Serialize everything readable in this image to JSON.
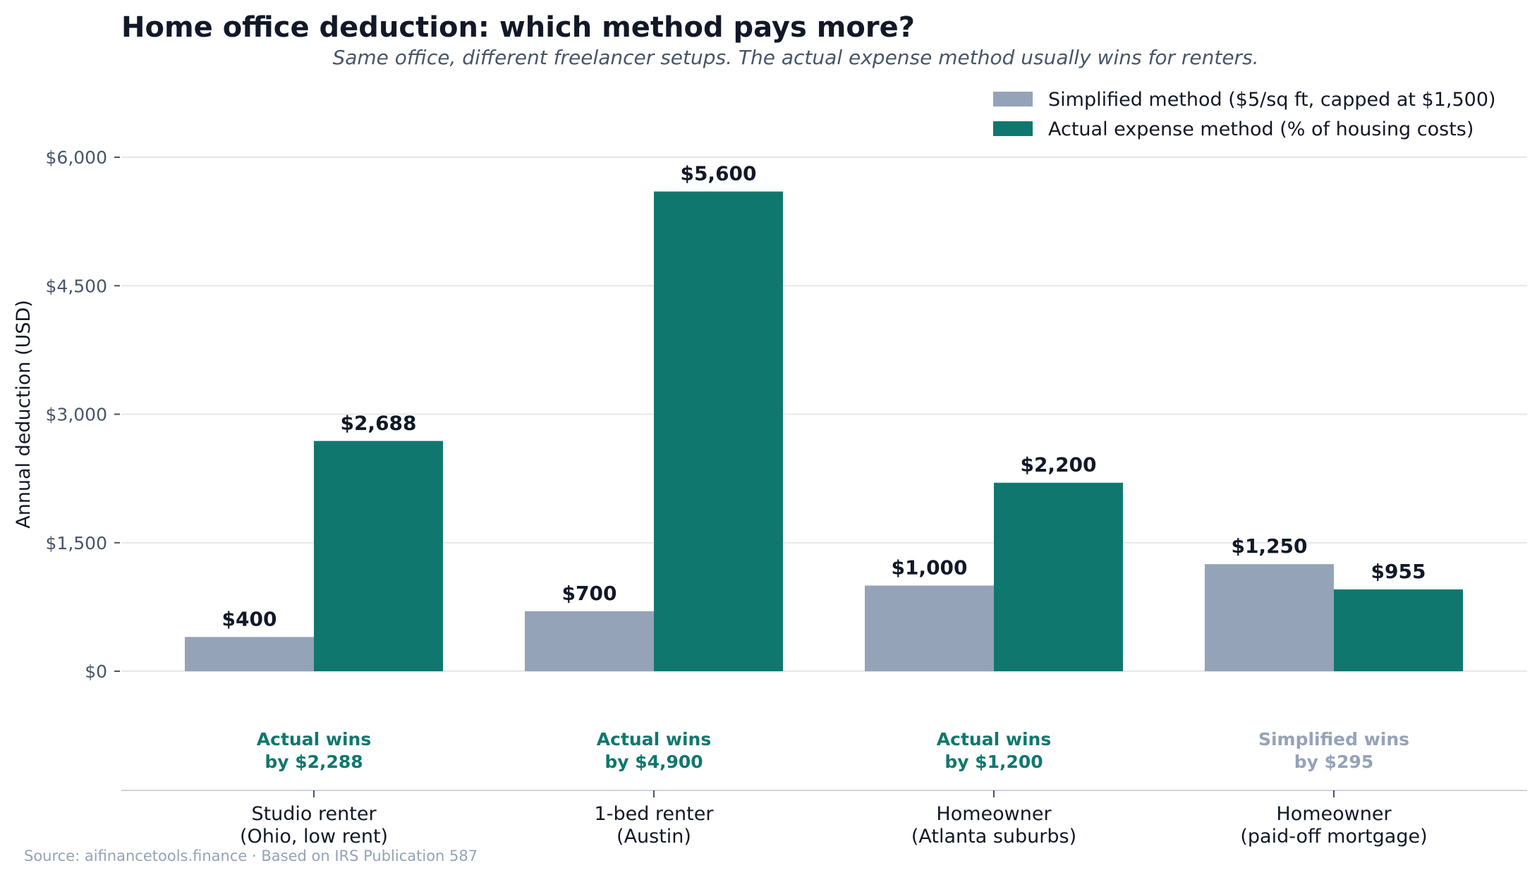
{
  "chart_data": {
    "type": "bar",
    "title": "Home office deduction: which method pays more?",
    "subtitle": "Same office, different freelancer setups. The actual expense method usually wins for renters.",
    "xlabel": "",
    "ylabel": "Annual deduction (USD)",
    "ylim": [
      0,
      6000
    ],
    "yticks": [
      0,
      1500,
      3000,
      4500,
      6000
    ],
    "ytick_labels": [
      "$0",
      "$1,500",
      "$3,000",
      "$4,500",
      "$6,000"
    ],
    "grid": true,
    "legend_position": "top-right",
    "categories": [
      [
        "Studio renter",
        "(Ohio, low rent)"
      ],
      [
        "1-bed renter",
        "(Austin)"
      ],
      [
        "Homeowner",
        "(Atlanta suburbs)"
      ],
      [
        "Homeowner",
        "(paid-off mortgage)"
      ]
    ],
    "series": [
      {
        "name": "Simplified method ($5/sq ft, capped at $1,500)",
        "color": "#94a3b8",
        "values": [
          400,
          700,
          1000,
          1250
        ],
        "labels": [
          "$400",
          "$700",
          "$1,000",
          "$1,250"
        ]
      },
      {
        "name": "Actual expense method (% of housing costs)",
        "color": "#10776f",
        "values": [
          2688,
          5600,
          2200,
          955
        ],
        "labels": [
          "$2,688",
          "$5,600",
          "$2,200",
          "$955"
        ]
      }
    ],
    "annotations": [
      {
        "lines": [
          "Actual wins",
          "by $2,288"
        ],
        "color": "#10776f"
      },
      {
        "lines": [
          "Actual wins",
          "by $4,900"
        ],
        "color": "#10776f"
      },
      {
        "lines": [
          "Actual wins",
          "by $1,200"
        ],
        "color": "#10776f"
      },
      {
        "lines": [
          "Simplified wins",
          "by $295"
        ],
        "color": "#94a3b8"
      }
    ],
    "source": "Source: aifinancetools.finance · Based on IRS Publication 587"
  }
}
